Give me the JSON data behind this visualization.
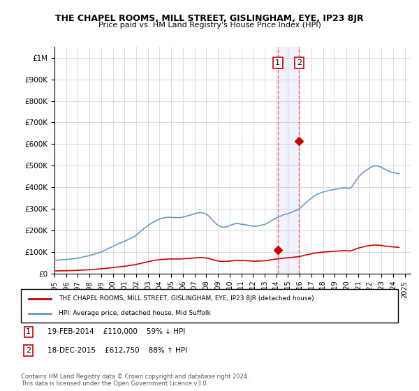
{
  "title": "THE CHAPEL ROOMS, MILL STREET, GISLINGHAM, EYE, IP23 8JR",
  "subtitle": "Price paid vs. HM Land Registry's House Price Index (HPI)",
  "ylim": [
    0,
    1050000
  ],
  "yticks": [
    0,
    100000,
    200000,
    300000,
    400000,
    500000,
    600000,
    700000,
    800000,
    900000,
    1000000
  ],
  "ytick_labels": [
    "£0",
    "£100K",
    "£200K",
    "£300K",
    "£400K",
    "£500K",
    "£600K",
    "£700K",
    "£800K",
    "£900K",
    "£1M"
  ],
  "sale1_date": 2014.12,
  "sale1_price": 110000,
  "sale1_label": "1",
  "sale1_info": "19-FEB-2014    £110,000    59% ↓ HPI",
  "sale2_date": 2015.96,
  "sale2_price": 612750,
  "sale2_label": "2",
  "sale2_info": "18-DEC-2015    £612,750    88% ↑ HPI",
  "property_color": "#cc0000",
  "hpi_color": "#6699cc",
  "vline_color": "#ff6666",
  "annotation_box_color": "#ffcccc",
  "legend_property": "THE CHAPEL ROOMS, MILL STREET, GISLINGHAM, EYE, IP23 8JR (detached house)",
  "legend_hpi": "HPI: Average price, detached house, Mid Suffolk",
  "footnote": "Contains HM Land Registry data © Crown copyright and database right 2024.\nThis data is licensed under the Open Government Licence v3.0.",
  "xlim_start": 1995,
  "xlim_end": 2025.5,
  "hpi_data_x": [
    1995.0,
    1995.25,
    1995.5,
    1995.75,
    1996.0,
    1996.25,
    1996.5,
    1996.75,
    1997.0,
    1997.25,
    1997.5,
    1997.75,
    1998.0,
    1998.25,
    1998.5,
    1998.75,
    1999.0,
    1999.25,
    1999.5,
    1999.75,
    2000.0,
    2000.25,
    2000.5,
    2000.75,
    2001.0,
    2001.25,
    2001.5,
    2001.75,
    2002.0,
    2002.25,
    2002.5,
    2002.75,
    2003.0,
    2003.25,
    2003.5,
    2003.75,
    2004.0,
    2004.25,
    2004.5,
    2004.75,
    2005.0,
    2005.25,
    2005.5,
    2005.75,
    2006.0,
    2006.25,
    2006.5,
    2006.75,
    2007.0,
    2007.25,
    2007.5,
    2007.75,
    2008.0,
    2008.25,
    2008.5,
    2008.75,
    2009.0,
    2009.25,
    2009.5,
    2009.75,
    2010.0,
    2010.25,
    2010.5,
    2010.75,
    2011.0,
    2011.25,
    2011.5,
    2011.75,
    2012.0,
    2012.25,
    2012.5,
    2012.75,
    2013.0,
    2013.25,
    2013.5,
    2013.75,
    2014.0,
    2014.25,
    2014.5,
    2014.75,
    2015.0,
    2015.25,
    2015.5,
    2015.75,
    2016.0,
    2016.25,
    2016.5,
    2016.75,
    2017.0,
    2017.25,
    2017.5,
    2017.75,
    2018.0,
    2018.25,
    2018.5,
    2018.75,
    2019.0,
    2019.25,
    2019.5,
    2019.75,
    2020.0,
    2020.25,
    2020.5,
    2020.75,
    2021.0,
    2021.25,
    2021.5,
    2021.75,
    2022.0,
    2022.25,
    2022.5,
    2022.75,
    2023.0,
    2023.25,
    2023.5,
    2023.75,
    2024.0,
    2024.25,
    2024.5
  ],
  "hpi_data_y": [
    62000,
    63000,
    64000,
    65000,
    66000,
    67500,
    69000,
    70000,
    72000,
    75000,
    78000,
    81000,
    84000,
    88000,
    92000,
    96000,
    100000,
    107000,
    114000,
    120000,
    126000,
    133000,
    139000,
    145000,
    150000,
    157000,
    163000,
    170000,
    178000,
    190000,
    202000,
    213000,
    222000,
    232000,
    240000,
    247000,
    253000,
    257000,
    260000,
    261000,
    261000,
    260000,
    260000,
    260000,
    262000,
    265000,
    270000,
    273000,
    277000,
    282000,
    283000,
    281000,
    276000,
    265000,
    250000,
    236000,
    224000,
    218000,
    215000,
    218000,
    222000,
    228000,
    232000,
    232000,
    229000,
    228000,
    225000,
    222000,
    220000,
    220000,
    222000,
    225000,
    228000,
    235000,
    243000,
    251000,
    258000,
    264000,
    270000,
    275000,
    278000,
    283000,
    289000,
    294000,
    302000,
    315000,
    327000,
    338000,
    350000,
    360000,
    368000,
    373000,
    378000,
    382000,
    385000,
    388000,
    390000,
    393000,
    395000,
    398000,
    398000,
    393000,
    405000,
    425000,
    445000,
    460000,
    472000,
    480000,
    490000,
    498000,
    500000,
    498000,
    493000,
    485000,
    478000,
    472000,
    468000,
    466000,
    462000
  ],
  "property_data_x": [
    1995.0,
    1995.25,
    1995.5,
    1995.75,
    1996.0,
    1996.25,
    1996.5,
    1996.75,
    1997.0,
    1997.25,
    1997.5,
    1997.75,
    1998.0,
    1998.25,
    1998.5,
    1998.75,
    1999.0,
    1999.25,
    1999.5,
    1999.75,
    2000.0,
    2000.25,
    2000.5,
    2000.75,
    2001.0,
    2001.25,
    2001.5,
    2001.75,
    2002.0,
    2002.25,
    2002.5,
    2002.75,
    2003.0,
    2003.25,
    2003.5,
    2003.75,
    2004.0,
    2004.25,
    2004.5,
    2004.75,
    2005.0,
    2005.25,
    2005.5,
    2005.75,
    2006.0,
    2006.25,
    2006.5,
    2006.75,
    2007.0,
    2007.25,
    2007.5,
    2007.75,
    2008.0,
    2008.25,
    2008.5,
    2008.75,
    2009.0,
    2009.25,
    2009.5,
    2009.75,
    2010.0,
    2010.25,
    2010.5,
    2010.75,
    2011.0,
    2011.25,
    2011.5,
    2011.75,
    2012.0,
    2012.25,
    2012.5,
    2012.75,
    2013.0,
    2013.25,
    2013.5,
    2013.75,
    2014.0,
    2014.25,
    2014.5,
    2014.75,
    2015.0,
    2015.25,
    2015.5,
    2015.75,
    2016.0,
    2016.25,
    2016.5,
    2016.75,
    2017.0,
    2017.25,
    2017.5,
    2017.75,
    2018.0,
    2018.25,
    2018.5,
    2018.75,
    2019.0,
    2019.25,
    2019.5,
    2019.75,
    2020.0,
    2020.25,
    2020.5,
    2020.75,
    2021.0,
    2021.25,
    2021.5,
    2021.75,
    2022.0,
    2022.25,
    2022.5,
    2022.75,
    2023.0,
    2023.25,
    2023.5,
    2023.75,
    2024.0,
    2024.25,
    2024.5
  ],
  "property_data_y": [
    13000,
    13200,
    13400,
    13600,
    13800,
    14200,
    14600,
    15000,
    15500,
    16200,
    17000,
    17800,
    18600,
    19500,
    20500,
    21500,
    22500,
    24000,
    25500,
    27000,
    28500,
    30000,
    31500,
    33000,
    34500,
    36500,
    38500,
    40500,
    43000,
    46000,
    49000,
    52000,
    55000,
    58000,
    61000,
    63000,
    65000,
    66000,
    67000,
    68000,
    68000,
    68000,
    68000,
    68000,
    69000,
    70000,
    71000,
    72000,
    73000,
    74000,
    75000,
    74000,
    73000,
    70000,
    66000,
    62000,
    59000,
    57000,
    57000,
    57500,
    58000,
    60000,
    62000,
    62000,
    61000,
    61000,
    60000,
    59000,
    58000,
    58000,
    58500,
    59000,
    60000,
    62000,
    64000,
    66000,
    68000,
    69500,
    71000,
    72500,
    74000,
    75000,
    76500,
    78000,
    79500,
    83000,
    87000,
    89000,
    92000,
    95000,
    97000,
    98500,
    100000,
    101000,
    102000,
    103000,
    104000,
    105000,
    106000,
    107000,
    107000,
    105000,
    108000,
    113000,
    118000,
    122000,
    125000,
    128000,
    130000,
    132000,
    133000,
    132000,
    131000,
    128000,
    127000,
    125000,
    124000,
    123000,
    122000
  ],
  "xticks": [
    1995,
    1996,
    1997,
    1998,
    1999,
    2000,
    2001,
    2002,
    2003,
    2004,
    2005,
    2006,
    2007,
    2008,
    2009,
    2010,
    2011,
    2012,
    2013,
    2014,
    2015,
    2016,
    2017,
    2018,
    2019,
    2020,
    2021,
    2022,
    2023,
    2024,
    2025
  ]
}
